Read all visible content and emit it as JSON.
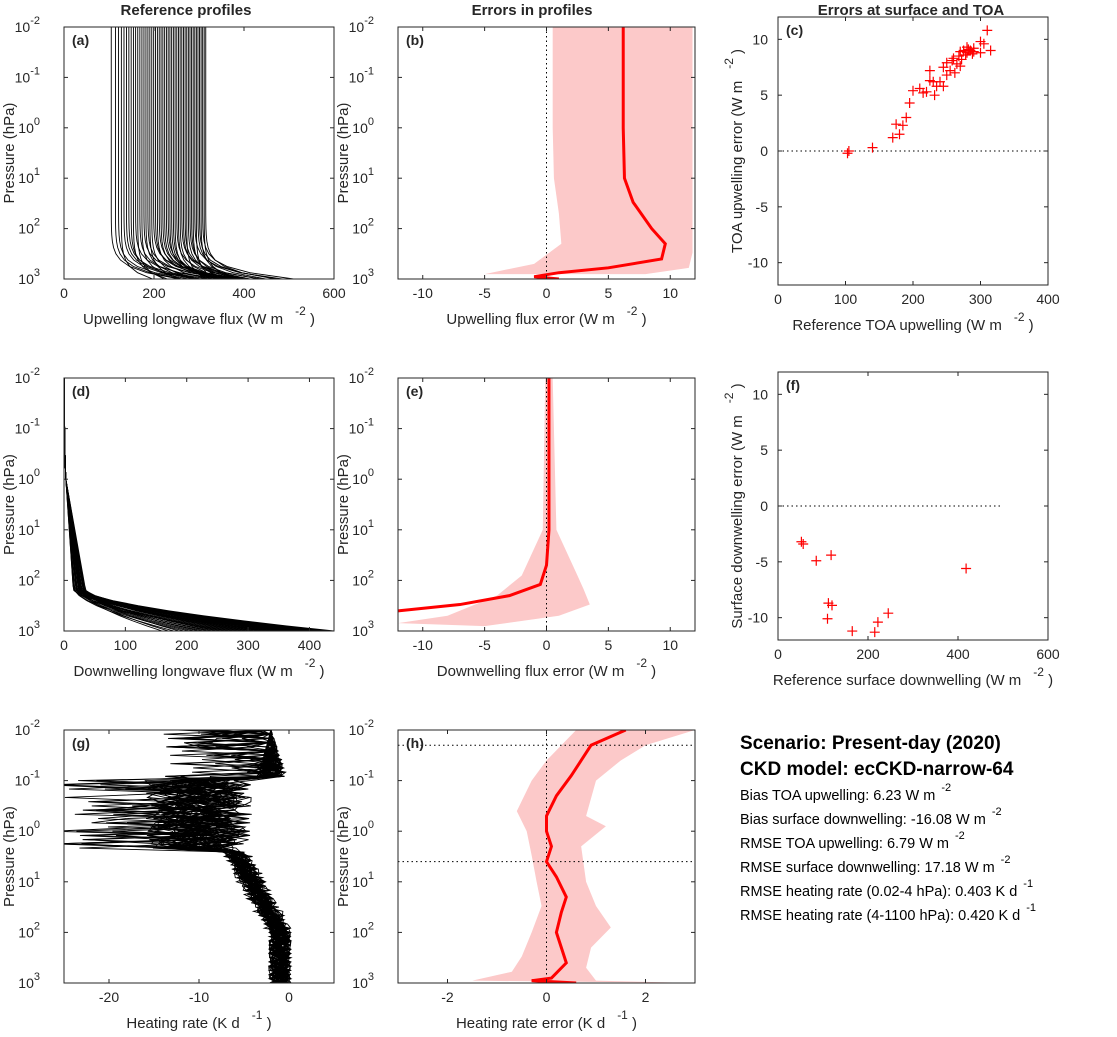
{
  "column_titles": [
    "Reference profiles",
    "Errors in profiles",
    "Errors at surface and TOA"
  ],
  "scenario": {
    "title": "Scenario: Present-day (2020)",
    "model": "CKD model: ecCKD-narrow-64",
    "stats": [
      {
        "label": "Bias TOA upwelling: 6.23 W m",
        "sup": "-2"
      },
      {
        "label": "Bias surface downwelling: -16.08 W m",
        "sup": "-2"
      },
      {
        "label": "RMSE TOA upwelling: 6.79 W m",
        "sup": "-2"
      },
      {
        "label": "RMSE surface downwelling: 17.18 W m",
        "sup": "-2"
      },
      {
        "label": "RMSE heating rate (0.02-4 hPa):  0.403 K d",
        "sup": "-1"
      },
      {
        "label": "RMSE heating rate (4-1100 hPa):  0.420 K d",
        "sup": "-1"
      }
    ]
  },
  "colors": {
    "profile": "#000000",
    "error": "#ff0000",
    "band": "#fcc9c9",
    "axis": "#262626"
  },
  "chart_data": [
    {
      "id": "a",
      "type": "line",
      "panel_label": "(a)",
      "xlabel": "Upwelling longwave flux (W m",
      "xlabel_sup": "-2",
      "ylabel": "Pressure (hPa)",
      "xlim": [
        0,
        600
      ],
      "xticks": [
        0,
        200,
        400,
        600
      ],
      "ylim": [
        0.01,
        1000
      ],
      "yscale": "log",
      "yticks": [
        "10^-2",
        "10^-1",
        "10^0",
        "10^1",
        "10^2",
        "10^3"
      ],
      "series_count": 50,
      "description_values": {
        "toa_flux_range": [
          105,
          315
        ],
        "surface_flux_range": [
          300,
          510
        ]
      }
    },
    {
      "id": "b",
      "type": "area",
      "panel_label": "(b)",
      "xlabel": "Upwelling flux error (W m",
      "xlabel_sup": "-2",
      "ylabel": "Pressure (hPa)",
      "xlim": [
        -12,
        12
      ],
      "xticks": [
        -10,
        -5,
        0,
        5,
        10
      ],
      "ylim": [
        0.01,
        1000
      ],
      "yscale": "log",
      "yticks": [
        "10^-2",
        "10^-1",
        "10^0",
        "10^1",
        "10^2",
        "10^3"
      ],
      "zero_line": true,
      "mean": [
        [
          6.2,
          0.01
        ],
        [
          6.2,
          0.1
        ],
        [
          6.2,
          1
        ],
        [
          6.3,
          10
        ],
        [
          7.0,
          30
        ],
        [
          8.5,
          100
        ],
        [
          9.6,
          200
        ],
        [
          9.3,
          400
        ],
        [
          5.0,
          600
        ],
        [
          1.0,
          750
        ],
        [
          -1.0,
          900
        ],
        [
          1.0,
          1000
        ]
      ],
      "band_low": [
        [
          0.5,
          0.01
        ],
        [
          0.5,
          0.1
        ],
        [
          0.5,
          1
        ],
        [
          0.6,
          10
        ],
        [
          1.0,
          50
        ],
        [
          1.2,
          200
        ],
        [
          -1.0,
          500
        ],
        [
          -5.0,
          800
        ]
      ],
      "band_high": [
        [
          11.8,
          0.01
        ],
        [
          11.8,
          1
        ],
        [
          11.8,
          100
        ],
        [
          11.8,
          300
        ],
        [
          11.5,
          600
        ],
        [
          8.0,
          800
        ]
      ]
    },
    {
      "id": "c",
      "type": "scatter",
      "panel_label": "(c)",
      "xlabel": "Reference TOA upwelling (W m",
      "xlabel_sup": "-2",
      "ylabel": "TOA upwelling error (W m",
      "ylabel_sup": "-2",
      "xlim": [
        0,
        400
      ],
      "xticks": [
        0,
        100,
        200,
        300,
        400
      ],
      "ylim": [
        -12,
        12
      ],
      "yticks": [
        -10,
        -5,
        0,
        5,
        10
      ],
      "zero_line": true,
      "x": [
        103,
        105,
        140,
        170,
        175,
        180,
        185,
        190,
        195,
        200,
        210,
        215,
        220,
        225,
        230,
        235,
        240,
        245,
        250,
        255,
        258,
        262,
        265,
        268,
        270,
        272,
        275,
        278,
        280,
        282,
        285,
        288,
        290,
        300,
        305,
        310,
        315,
        225,
        232,
        245,
        250,
        260,
        270,
        280,
        290,
        300
      ],
      "y": [
        -0.2,
        0.0,
        0.3,
        1.2,
        2.4,
        1.5,
        2.3,
        3.0,
        4.3,
        5.4,
        5.6,
        5.2,
        5.3,
        6.3,
        6.2,
        5.8,
        6.2,
        7.5,
        6.8,
        7.2,
        8.1,
        7.0,
        7.8,
        8.5,
        8.9,
        8.2,
        9.0,
        8.6,
        8.8,
        9.1,
        9.0,
        8.7,
        8.9,
        9.8,
        9.6,
        10.8,
        9.0,
        7.2,
        5.0,
        5.8,
        7.9,
        8.3,
        7.6,
        9.3,
        9.2,
        8.8
      ]
    },
    {
      "id": "d",
      "type": "line",
      "panel_label": "(d)",
      "xlabel": "Downwelling longwave flux (W m",
      "xlabel_sup": "-2",
      "ylabel": "Pressure (hPa)",
      "xlim": [
        0,
        440
      ],
      "xticks": [
        0,
        100,
        200,
        300,
        400
      ],
      "ylim": [
        0.01,
        1000
      ],
      "yscale": "log",
      "yticks": [
        "10^-2",
        "10^-1",
        "10^0",
        "10^1",
        "10^2",
        "10^3"
      ],
      "series_count": 40
    },
    {
      "id": "e",
      "type": "area",
      "panel_label": "(e)",
      "xlabel": "Downwelling flux error (W m",
      "xlabel_sup": "-2",
      "ylabel": "Pressure (hPa)",
      "xlim": [
        -12,
        12
      ],
      "xticks": [
        -10,
        -5,
        0,
        5,
        10
      ],
      "ylim": [
        0.01,
        1000
      ],
      "yscale": "log",
      "yticks": [
        "10^-2",
        "10^-1",
        "10^0",
        "10^1",
        "10^2",
        "10^3"
      ],
      "zero_line": true,
      "mean": [
        [
          0.2,
          0.01
        ],
        [
          0.2,
          1
        ],
        [
          0.2,
          10
        ],
        [
          0.0,
          50
        ],
        [
          -0.5,
          120
        ],
        [
          -3.0,
          200
        ],
        [
          -7.0,
          300
        ],
        [
          -12.0,
          400
        ]
      ],
      "band_low": [
        [
          -0.1,
          0.01
        ],
        [
          -0.3,
          10
        ],
        [
          -2.0,
          80
        ],
        [
          -4.0,
          200
        ],
        [
          -8.0,
          500
        ],
        [
          -12.0,
          700
        ]
      ],
      "band_high": [
        [
          0.5,
          0.01
        ],
        [
          0.8,
          10
        ],
        [
          2.5,
          80
        ],
        [
          3.0,
          150
        ],
        [
          3.5,
          300
        ],
        [
          1.0,
          500
        ],
        [
          -5,
          800
        ]
      ]
    },
    {
      "id": "f",
      "type": "scatter",
      "panel_label": "(f)",
      "xlabel": "Reference surface downwelling (W m",
      "xlabel_sup": "-2",
      "ylabel": "Surface downwelling error (W m",
      "ylabel_sup": "-2",
      "xlim": [
        0,
        600
      ],
      "xticks": [
        0,
        200,
        400,
        600
      ],
      "ylim": [
        -12,
        12
      ],
      "yticks": [
        -10,
        -5,
        0,
        5,
        10
      ],
      "zero_line": true,
      "x": [
        52,
        56,
        85,
        110,
        118,
        112,
        120,
        165,
        215,
        222,
        245,
        418
      ],
      "y": [
        -3.2,
        -3.4,
        -4.9,
        -10.1,
        -4.4,
        -8.7,
        -8.9,
        -11.2,
        -11.3,
        -10.4,
        -9.6,
        -5.6
      ]
    },
    {
      "id": "g",
      "type": "line",
      "panel_label": "(g)",
      "xlabel": "Heating rate (K d",
      "xlabel_sup": "-1",
      "ylabel": "Pressure (hPa)",
      "xlim": [
        -25,
        5
      ],
      "xticks": [
        -20,
        -10,
        0
      ],
      "ylim": [
        0.01,
        1000
      ],
      "yscale": "log",
      "yticks": [
        "10^-2",
        "10^-1",
        "10^0",
        "10^1",
        "10^2",
        "10^3"
      ],
      "series_count": 50
    },
    {
      "id": "h",
      "type": "area",
      "panel_label": "(h)",
      "xlabel": "Heating rate error (K d",
      "xlabel_sup": "-1",
      "ylabel": "Pressure (hPa)",
      "xlim": [
        -3,
        3
      ],
      "xticks": [
        -2,
        0,
        2
      ],
      "ylim": [
        0.01,
        1000
      ],
      "yscale": "log",
      "yticks": [
        "10^-2",
        "10^-1",
        "10^0",
        "10^1",
        "10^2",
        "10^3"
      ],
      "zero_line": true,
      "hlines": [
        0.02,
        4
      ],
      "mean": [
        [
          1.6,
          0.01
        ],
        [
          0.9,
          0.02
        ],
        [
          0.7,
          0.04
        ],
        [
          0.5,
          0.08
        ],
        [
          0.2,
          0.2
        ],
        [
          0.0,
          0.5
        ],
        [
          0.0,
          1
        ],
        [
          0.1,
          2
        ],
        [
          0.0,
          4
        ],
        [
          0.2,
          8
        ],
        [
          0.4,
          20
        ],
        [
          0.3,
          40
        ],
        [
          0.2,
          100
        ],
        [
          0.3,
          200
        ],
        [
          0.4,
          400
        ],
        [
          0.1,
          800
        ],
        [
          -0.3,
          900
        ],
        [
          0.6,
          1000
        ]
      ],
      "band_low": [
        [
          0.6,
          0.01
        ],
        [
          0.3,
          0.02
        ],
        [
          0.0,
          0.04
        ],
        [
          -0.3,
          0.1
        ],
        [
          -0.6,
          0.4
        ],
        [
          -0.4,
          1
        ],
        [
          -0.3,
          3
        ],
        [
          -0.2,
          10
        ],
        [
          -0.1,
          30
        ],
        [
          -0.3,
          100
        ],
        [
          -0.5,
          300
        ],
        [
          -0.7,
          600
        ],
        [
          -1.5,
          900
        ]
      ],
      "band_high": [
        [
          3.0,
          0.01
        ],
        [
          2.0,
          0.02
        ],
        [
          1.5,
          0.04
        ],
        [
          1.0,
          0.1
        ],
        [
          0.8,
          0.5
        ],
        [
          1.2,
          0.8
        ],
        [
          0.7,
          2
        ],
        [
          0.8,
          10
        ],
        [
          1.0,
          30
        ],
        [
          1.3,
          80
        ],
        [
          0.9,
          200
        ],
        [
          0.8,
          500
        ],
        [
          1.0,
          900
        ],
        [
          3.0,
          1000
        ]
      ]
    }
  ]
}
